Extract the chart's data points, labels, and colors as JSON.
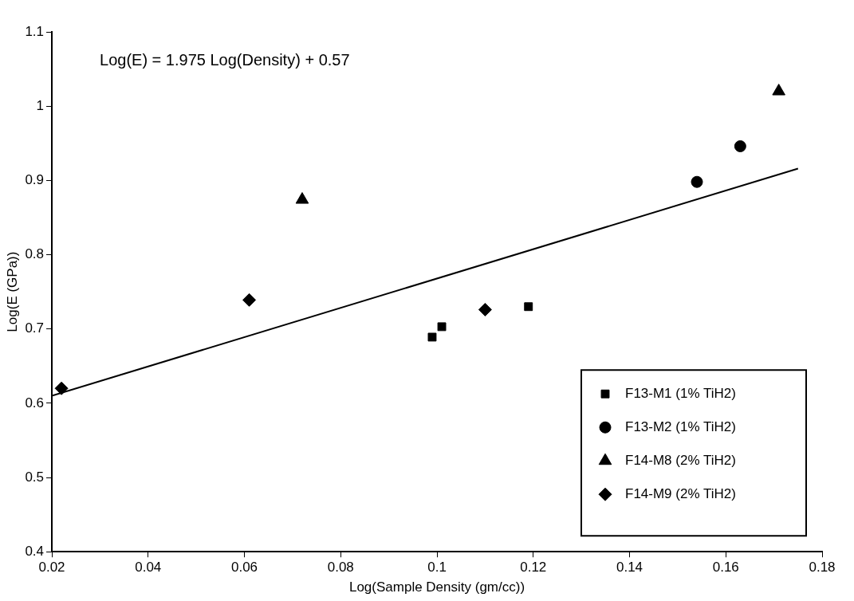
{
  "chart_data": {
    "type": "scatter",
    "xlabel": "Log(Sample Density (gm/cc))",
    "ylabel": "Log(E (GPa))",
    "annotations": [
      "Log(E) = 1.975 Log(Density) + 0.57"
    ],
    "series": [
      {
        "name": "F13-M1 (1% TiH2)",
        "color": "#000000",
        "marker": "square",
        "x": [
          0.099,
          0.101,
          0.119
        ],
        "values": [
          0.689,
          0.703,
          0.73
        ]
      },
      {
        "name": "F13-M2 (1% TiH2)",
        "color": "#000000",
        "marker": "circle",
        "x": [
          0.154,
          0.163
        ],
        "values": [
          0.898,
          0.946
        ]
      },
      {
        "name": "F14-M8 (2% TiH2)",
        "color": "#000000",
        "marker": "triangle",
        "x": [
          0.072,
          0.171
        ],
        "values": [
          0.874,
          1.02
        ]
      },
      {
        "name": "F14-M9 (2% TiH2)",
        "color": "#000000",
        "marker": "diamond",
        "x": [
          0.022,
          0.061,
          0.11
        ],
        "values": [
          0.62,
          0.739,
          0.726
        ]
      },
      {
        "type": "line",
        "color": "#000000",
        "marker": "none",
        "x": [
          0.02,
          0.175
        ],
        "values": [
          0.61,
          0.916
        ]
      }
    ],
    "xlim": [
      0.02,
      0.18
    ],
    "xticks": [
      0.02,
      0.04,
      0.06,
      0.08,
      0.1,
      0.12,
      0.14,
      0.16,
      0.18
    ],
    "ylim": [
      0.4,
      1.1
    ],
    "yticks": [
      0.4,
      0.5,
      0.6,
      0.7,
      0.8,
      0.9,
      1,
      1.1
    ],
    "grid": false,
    "legend": "bottom right"
  }
}
